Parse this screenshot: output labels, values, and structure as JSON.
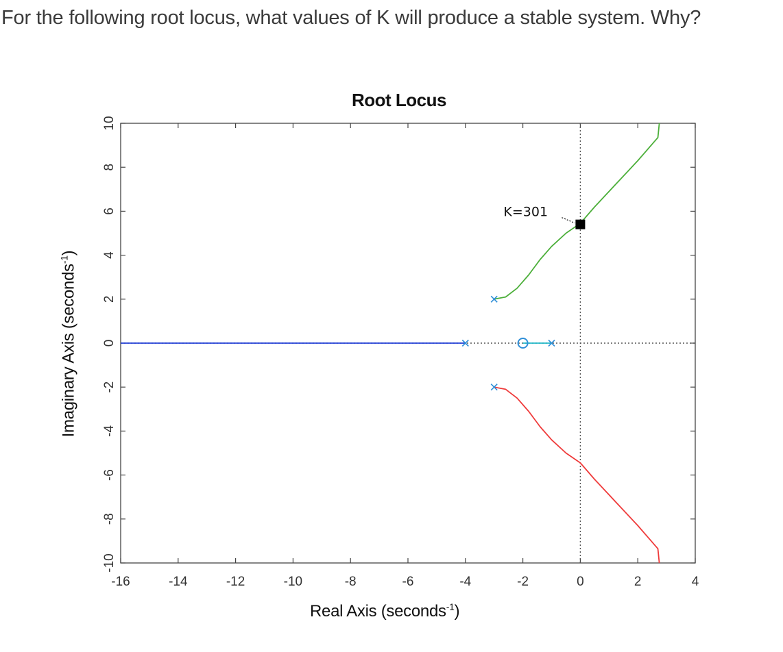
{
  "question": "For the following root locus, what values of K will produce a stable system. Why?",
  "chart_data": {
    "type": "line",
    "title": "Root Locus",
    "xlabel_text": "Real Axis (seconds",
    "ylabel_text": "Imaginary Axis (seconds",
    "label_exponent": "-1",
    "label_close": ")",
    "xlim": [
      -16,
      4
    ],
    "ylim": [
      -10,
      10
    ],
    "xticks": [
      -16,
      -14,
      -12,
      -10,
      -8,
      -6,
      -4,
      -2,
      0,
      2,
      4
    ],
    "yticks": [
      -10,
      -8,
      -6,
      -4,
      -2,
      0,
      2,
      4,
      6,
      8,
      10
    ],
    "grid": false,
    "poles": [
      [
        -4,
        0
      ],
      [
        -3,
        2
      ],
      [
        -3,
        -2
      ],
      [
        -1,
        0
      ]
    ],
    "zeros": [
      [
        -2,
        0
      ]
    ],
    "series": [
      {
        "color": "#2340d8",
        "points": [
          [
            -16,
            0
          ],
          [
            -4,
            0
          ]
        ]
      },
      {
        "color": "#20b8c8",
        "points": [
          [
            -2,
            0
          ],
          [
            -1,
            0
          ]
        ]
      },
      {
        "color": "#4caf3a",
        "points": [
          [
            -3,
            2
          ],
          [
            -2.6,
            2.1
          ],
          [
            -2.2,
            2.5
          ],
          [
            -1.8,
            3.1
          ],
          [
            -1.4,
            3.8
          ],
          [
            -1.0,
            4.4
          ],
          [
            -0.5,
            5.0
          ],
          [
            0,
            5.45
          ],
          [
            0.5,
            6.2
          ],
          [
            1.0,
            6.9
          ],
          [
            1.5,
            7.6
          ],
          [
            2.0,
            8.3
          ],
          [
            2.6,
            9.2
          ],
          [
            2.7,
            9.35
          ],
          [
            2.75,
            10
          ]
        ]
      },
      {
        "color": "#ef3b3b",
        "points": [
          [
            -3,
            -2
          ],
          [
            -2.6,
            -2.1
          ],
          [
            -2.2,
            -2.5
          ],
          [
            -1.8,
            -3.1
          ],
          [
            -1.4,
            -3.8
          ],
          [
            -1.0,
            -4.4
          ],
          [
            -0.5,
            -5.0
          ],
          [
            0,
            -5.45
          ],
          [
            0.5,
            -6.2
          ],
          [
            1.0,
            -6.9
          ],
          [
            1.5,
            -7.6
          ],
          [
            2.0,
            -8.3
          ],
          [
            2.6,
            -9.2
          ],
          [
            2.7,
            -9.35
          ],
          [
            2.75,
            -10
          ]
        ]
      }
    ],
    "guides": [
      {
        "orientation": "vertical",
        "value": 0
      },
      {
        "orientation": "horizontal",
        "value": 0
      }
    ],
    "annotation": {
      "text": "K=301",
      "point": [
        0,
        5.4
      ]
    },
    "colors": {
      "pole_zero_marker": "#2f8fd8",
      "marker_box": "#000000"
    }
  }
}
